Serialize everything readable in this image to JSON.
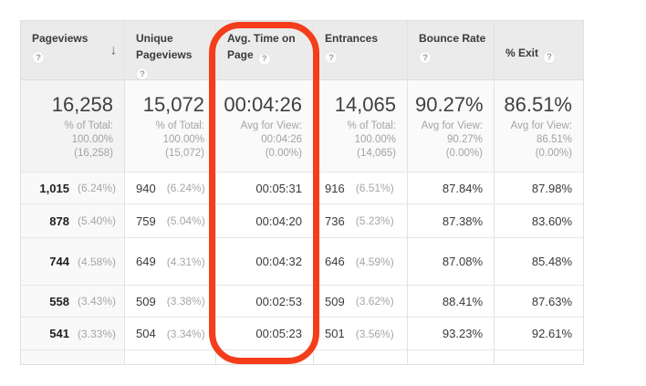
{
  "icons": {
    "help": "?",
    "sort_desc": "↓"
  },
  "colors": {
    "highlight": "#f43d1a",
    "header_bg": "#ebebeb"
  },
  "columns": [
    {
      "label": "Pageviews",
      "sorted": "descending"
    },
    {
      "label": "Unique Pageviews"
    },
    {
      "label": "Avg. Time on Page",
      "highlighted": true
    },
    {
      "label": "Entrances"
    },
    {
      "label": "Bounce Rate"
    },
    {
      "label": "% Exit"
    }
  ],
  "totals": {
    "pageviews": {
      "value": "16,258",
      "sub1": "% of Total:",
      "sub2": "100.00%",
      "sub3": "(16,258)"
    },
    "unique": {
      "value": "15,072",
      "sub1": "% of Total:",
      "sub2": "100.00%",
      "sub3": "(15,072)"
    },
    "avg_time": {
      "value": "00:04:26",
      "sub1": "Avg for View:",
      "sub2": "00:04:26",
      "sub3": "(0.00%)"
    },
    "entrances": {
      "value": "14,065",
      "sub1": "% of Total:",
      "sub2": "100.00%",
      "sub3": "(14,065)"
    },
    "bounce": {
      "value": "90.27%",
      "sub1": "Avg for View:",
      "sub2": "90.27%",
      "sub3": "(0.00%)"
    },
    "exit": {
      "value": "86.51%",
      "sub1": "Avg for View:",
      "sub2": "86.51%",
      "sub3": "(0.00%)"
    }
  },
  "rows": [
    {
      "pageviews": "1,015",
      "pageviews_pct": "(6.24%)",
      "unique": "940",
      "unique_pct": "(6.24%)",
      "avg_time": "00:05:31",
      "entrances": "916",
      "entrances_pct": "(6.51%)",
      "bounce": "87.84%",
      "exit": "87.98%"
    },
    {
      "pageviews": "878",
      "pageviews_pct": "(5.40%)",
      "unique": "759",
      "unique_pct": "(5.04%)",
      "avg_time": "00:04:20",
      "entrances": "736",
      "entrances_pct": "(5.23%)",
      "bounce": "87.38%",
      "exit": "83.60%"
    },
    {
      "pageviews": "744",
      "pageviews_pct": "(4.58%)",
      "unique": "649",
      "unique_pct": "(4.31%)",
      "avg_time": "00:04:32",
      "entrances": "646",
      "entrances_pct": "(4.59%)",
      "bounce": "87.08%",
      "exit": "85.48%"
    },
    {
      "pageviews": "558",
      "pageviews_pct": "(3.43%)",
      "unique": "509",
      "unique_pct": "(3.38%)",
      "avg_time": "00:02:53",
      "entrances": "509",
      "entrances_pct": "(3.62%)",
      "bounce": "88.41%",
      "exit": "87.63%"
    },
    {
      "pageviews": "541",
      "pageviews_pct": "(3.33%)",
      "unique": "504",
      "unique_pct": "(3.34%)",
      "avg_time": "00:05:23",
      "entrances": "501",
      "entrances_pct": "(3.56%)",
      "bounce": "93.23%",
      "exit": "92.61%"
    }
  ]
}
